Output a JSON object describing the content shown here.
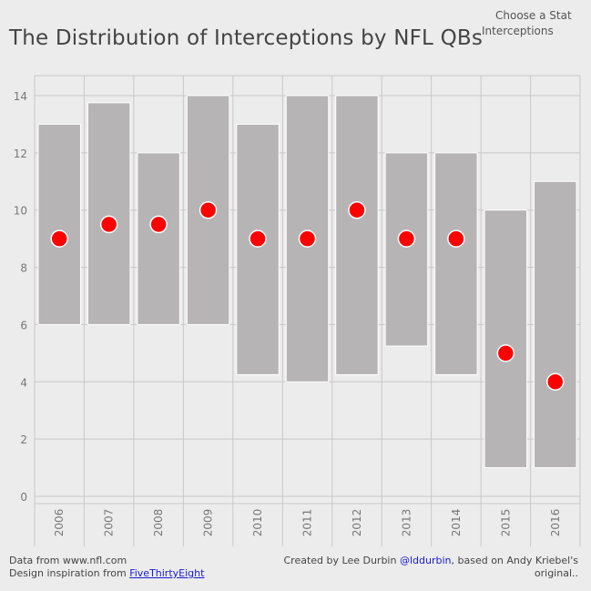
{
  "title": "The Distribution of Interceptions by NFL QBs",
  "filter": {
    "label": "Choose a Stat",
    "value": "Interceptions"
  },
  "footer": {
    "left_line1": "Data from www.nfl.com",
    "left_line2_prefix": "Design inspiration from ",
    "left_link": "FiveThirtyEight",
    "right_line1_prefix": "Created by Lee Durbin ",
    "right_handle": "@lddurbin",
    "right_line1_suffix": ", based on Andy Kriebel's",
    "right_line2": "original.."
  },
  "colors": {
    "bar": "#b6b4b4",
    "dot": "#ff0000",
    "grid": "#c8c8c8",
    "axis_text": "#777777"
  },
  "chart_data": {
    "type": "bar",
    "title": "The Distribution of Interceptions by NFL QBs",
    "xlabel": "",
    "ylabel": "",
    "ylim": [
      0,
      14
    ],
    "yticks": [
      0,
      2,
      4,
      6,
      8,
      10,
      12,
      14
    ],
    "categories": [
      "2006",
      "2007",
      "2008",
      "2009",
      "2010",
      "2011",
      "2012",
      "2013",
      "2014",
      "2015",
      "2016"
    ],
    "range_low": [
      6,
      6,
      6,
      6,
      4.25,
      4,
      4.25,
      5.25,
      4.25,
      1,
      1
    ],
    "range_high": [
      13,
      13.75,
      12,
      14,
      13,
      14,
      14,
      12,
      12,
      10,
      11
    ],
    "median": [
      9,
      9.5,
      9.5,
      10,
      9,
      9,
      10,
      9,
      9,
      5,
      4
    ],
    "grid": true
  }
}
